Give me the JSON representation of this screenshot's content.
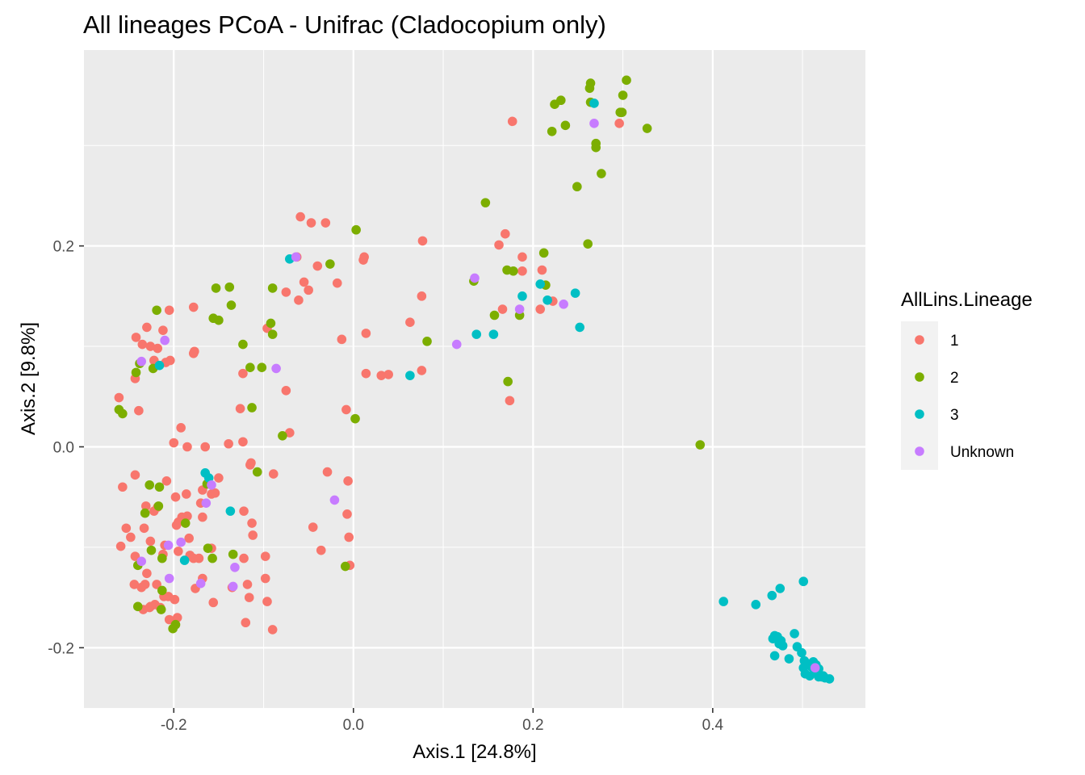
{
  "chart_data": {
    "type": "scatter",
    "title": "All lineages PCoA - Unifrac (Cladocopium only)",
    "xlabel": "Axis.1   [24.8%]",
    "ylabel": "Axis.2   [9.8%]",
    "xlim": [
      -0.3,
      0.57
    ],
    "ylim": [
      -0.26,
      0.395
    ],
    "x_ticks": [
      -0.2,
      0.0,
      0.2,
      0.4
    ],
    "x_tick_labels": [
      "-0.2",
      "0.0",
      "0.2",
      "0.4"
    ],
    "y_ticks": [
      -0.2,
      0.0,
      0.2
    ],
    "y_tick_labels": [
      "-0.2",
      "0.0",
      "0.2"
    ],
    "grid": true,
    "legend": {
      "title": "AllLins.Lineage",
      "placement": "right",
      "items": [
        "1",
        "2",
        "3",
        "Unknown"
      ]
    },
    "series": [
      {
        "name": "1",
        "color": "#F8766D",
        "points": [
          [
            0.177,
            0.324
          ],
          [
            0.296,
            0.322
          ],
          [
            -0.059,
            0.229
          ],
          [
            -0.047,
            0.223
          ],
          [
            -0.031,
            0.223
          ],
          [
            0.077,
            0.205
          ],
          [
            0.169,
            0.212
          ],
          [
            0.162,
            0.201
          ],
          [
            0.188,
            0.189
          ],
          [
            0.21,
            0.176
          ],
          [
            0.188,
            0.175
          ],
          [
            -0.063,
            0.189
          ],
          [
            -0.04,
            0.18
          ],
          [
            -0.055,
            0.164
          ],
          [
            -0.05,
            0.156
          ],
          [
            -0.018,
            0.163
          ],
          [
            0.012,
            0.189
          ],
          [
            0.011,
            0.186
          ],
          [
            -0.075,
            0.154
          ],
          [
            -0.061,
            0.146
          ],
          [
            0.076,
            0.15
          ],
          [
            0.222,
            0.145
          ],
          [
            0.166,
            0.137
          ],
          [
            0.208,
            0.137
          ],
          [
            0.063,
            0.124
          ],
          [
            -0.205,
            0.136
          ],
          [
            -0.178,
            0.139
          ],
          [
            -0.096,
            0.118
          ],
          [
            0.014,
            0.113
          ],
          [
            -0.013,
            0.107
          ],
          [
            -0.242,
            0.109
          ],
          [
            -0.23,
            0.119
          ],
          [
            -0.212,
            0.116
          ],
          [
            -0.235,
            0.102
          ],
          [
            -0.226,
            0.1
          ],
          [
            -0.218,
            0.098
          ],
          [
            -0.177,
            0.095
          ],
          [
            -0.178,
            0.093
          ],
          [
            -0.222,
            0.086
          ],
          [
            -0.204,
            0.086
          ],
          [
            -0.209,
            0.084
          ],
          [
            0.076,
            0.076
          ],
          [
            0.014,
            0.073
          ],
          [
            0.031,
            0.071
          ],
          [
            0.039,
            0.072
          ],
          [
            -0.123,
            0.073
          ],
          [
            -0.075,
            0.056
          ],
          [
            -0.243,
            0.068
          ],
          [
            -0.261,
            0.049
          ],
          [
            -0.239,
            0.036
          ],
          [
            -0.126,
            0.038
          ],
          [
            -0.008,
            0.037
          ],
          [
            -0.071,
            0.014
          ],
          [
            -0.192,
            0.019
          ],
          [
            -0.2,
            0.004
          ],
          [
            -0.185,
            0.0
          ],
          [
            -0.165,
            0.0
          ],
          [
            -0.139,
            0.003
          ],
          [
            -0.123,
            0.005
          ],
          [
            0.174,
            0.046
          ],
          [
            -0.257,
            -0.04
          ],
          [
            -0.243,
            -0.028
          ],
          [
            -0.208,
            -0.034
          ],
          [
            -0.198,
            -0.05
          ],
          [
            -0.186,
            -0.047
          ],
          [
            -0.168,
            -0.043
          ],
          [
            -0.15,
            -0.031
          ],
          [
            -0.158,
            -0.047
          ],
          [
            -0.154,
            -0.046
          ],
          [
            -0.17,
            -0.056
          ],
          [
            -0.115,
            -0.018
          ],
          [
            -0.114,
            -0.016
          ],
          [
            -0.089,
            -0.027
          ],
          [
            -0.029,
            -0.025
          ],
          [
            -0.006,
            -0.034
          ],
          [
            -0.231,
            -0.059
          ],
          [
            -0.218,
            -0.06
          ],
          [
            -0.222,
            -0.064
          ],
          [
            -0.191,
            -0.07
          ],
          [
            -0.185,
            -0.069
          ],
          [
            -0.195,
            -0.075
          ],
          [
            -0.197,
            -0.078
          ],
          [
            -0.183,
            -0.091
          ],
          [
            -0.168,
            -0.07
          ],
          [
            -0.122,
            -0.064
          ],
          [
            -0.113,
            -0.076
          ],
          [
            -0.112,
            -0.088
          ],
          [
            -0.045,
            -0.08
          ],
          [
            -0.007,
            -0.067
          ],
          [
            -0.005,
            -0.09
          ],
          [
            -0.036,
            -0.103
          ],
          [
            -0.004,
            -0.118
          ],
          [
            -0.253,
            -0.081
          ],
          [
            -0.248,
            -0.09
          ],
          [
            -0.233,
            -0.081
          ],
          [
            -0.259,
            -0.099
          ],
          [
            -0.226,
            -0.094
          ],
          [
            -0.21,
            -0.098
          ],
          [
            -0.243,
            -0.109
          ],
          [
            -0.212,
            -0.107
          ],
          [
            -0.195,
            -0.104
          ],
          [
            -0.182,
            -0.108
          ],
          [
            -0.178,
            -0.111
          ],
          [
            -0.172,
            -0.111
          ],
          [
            -0.158,
            -0.101
          ],
          [
            -0.122,
            -0.111
          ],
          [
            -0.098,
            -0.109
          ],
          [
            -0.118,
            -0.137
          ],
          [
            -0.098,
            -0.131
          ],
          [
            -0.23,
            -0.126
          ],
          [
            -0.232,
            -0.137
          ],
          [
            -0.244,
            -0.137
          ],
          [
            -0.236,
            -0.14
          ],
          [
            -0.219,
            -0.137
          ],
          [
            -0.211,
            -0.149
          ],
          [
            -0.206,
            -0.149
          ],
          [
            -0.199,
            -0.152
          ],
          [
            -0.176,
            -0.141
          ],
          [
            -0.168,
            -0.131
          ],
          [
            -0.135,
            -0.14
          ],
          [
            -0.156,
            -0.155
          ],
          [
            -0.116,
            -0.15
          ],
          [
            -0.096,
            -0.154
          ],
          [
            -0.234,
            -0.162
          ],
          [
            -0.227,
            -0.16
          ],
          [
            -0.221,
            -0.157
          ],
          [
            -0.226,
            -0.159
          ],
          [
            -0.215,
            -0.16
          ],
          [
            -0.205,
            -0.172
          ],
          [
            -0.196,
            -0.17
          ],
          [
            -0.12,
            -0.175
          ],
          [
            -0.09,
            -0.182
          ]
        ]
      },
      {
        "name": "2",
        "color": "#7CAE00",
        "points": [
          [
            0.264,
            0.362
          ],
          [
            0.304,
            0.365
          ],
          [
            0.263,
            0.357
          ],
          [
            0.3,
            0.35
          ],
          [
            0.231,
            0.345
          ],
          [
            0.224,
            0.341
          ],
          [
            0.264,
            0.343
          ],
          [
            0.297,
            0.333
          ],
          [
            0.299,
            0.333
          ],
          [
            0.236,
            0.32
          ],
          [
            0.221,
            0.314
          ],
          [
            0.327,
            0.317
          ],
          [
            0.27,
            0.302
          ],
          [
            0.27,
            0.298
          ],
          [
            0.276,
            0.272
          ],
          [
            0.249,
            0.259
          ],
          [
            0.147,
            0.243
          ],
          [
            0.003,
            0.216
          ],
          [
            0.261,
            0.202
          ],
          [
            0.212,
            0.193
          ],
          [
            -0.026,
            0.182
          ],
          [
            0.171,
            0.176
          ],
          [
            0.178,
            0.175
          ],
          [
            0.134,
            0.165
          ],
          [
            0.214,
            0.161
          ],
          [
            -0.153,
            0.158
          ],
          [
            -0.138,
            0.159
          ],
          [
            -0.09,
            0.158
          ],
          [
            0.157,
            0.131
          ],
          [
            0.185,
            0.131
          ],
          [
            -0.219,
            0.136
          ],
          [
            -0.156,
            0.128
          ],
          [
            -0.15,
            0.126
          ],
          [
            -0.136,
            0.141
          ],
          [
            -0.092,
            0.123
          ],
          [
            0.082,
            0.105
          ],
          [
            -0.09,
            0.112
          ],
          [
            -0.123,
            0.102
          ],
          [
            0.172,
            0.065
          ],
          [
            -0.238,
            0.083
          ],
          [
            -0.223,
            0.078
          ],
          [
            -0.242,
            0.074
          ],
          [
            -0.115,
            0.079
          ],
          [
            -0.102,
            0.079
          ],
          [
            -0.261,
            0.037
          ],
          [
            -0.257,
            0.033
          ],
          [
            -0.113,
            0.039
          ],
          [
            0.002,
            0.028
          ],
          [
            -0.079,
            0.011
          ],
          [
            0.386,
            0.002
          ],
          [
            -0.227,
            -0.038
          ],
          [
            -0.216,
            -0.04
          ],
          [
            -0.163,
            -0.037
          ],
          [
            -0.107,
            -0.025
          ],
          [
            -0.232,
            -0.066
          ],
          [
            -0.217,
            -0.059
          ],
          [
            -0.187,
            -0.076
          ],
          [
            -0.24,
            -0.118
          ],
          [
            -0.225,
            -0.103
          ],
          [
            -0.213,
            -0.111
          ],
          [
            -0.162,
            -0.101
          ],
          [
            -0.157,
            -0.111
          ],
          [
            -0.134,
            -0.107
          ],
          [
            -0.009,
            -0.119
          ],
          [
            -0.213,
            -0.143
          ],
          [
            -0.24,
            -0.159
          ],
          [
            -0.214,
            -0.162
          ],
          [
            -0.198,
            -0.177
          ],
          [
            -0.201,
            -0.181
          ]
        ]
      },
      {
        "name": "3",
        "color": "#00BFC4",
        "points": [
          [
            0.268,
            0.342
          ],
          [
            -0.071,
            0.187
          ],
          [
            0.208,
            0.162
          ],
          [
            0.247,
            0.153
          ],
          [
            0.188,
            0.15
          ],
          [
            0.216,
            0.146
          ],
          [
            0.252,
            0.119
          ],
          [
            0.137,
            0.112
          ],
          [
            0.156,
            0.112
          ],
          [
            0.063,
            0.071
          ],
          [
            -0.216,
            0.081
          ],
          [
            -0.165,
            -0.026
          ],
          [
            -0.161,
            -0.031
          ],
          [
            -0.137,
            -0.064
          ],
          [
            -0.188,
            -0.113
          ],
          [
            0.412,
            -0.154
          ],
          [
            0.448,
            -0.157
          ],
          [
            0.466,
            -0.148
          ],
          [
            0.475,
            -0.141
          ],
          [
            0.501,
            -0.134
          ],
          [
            0.469,
            -0.188
          ],
          [
            0.472,
            -0.189
          ],
          [
            0.476,
            -0.193
          ],
          [
            0.491,
            -0.186
          ],
          [
            0.467,
            -0.191
          ],
          [
            0.474,
            -0.196
          ],
          [
            0.478,
            -0.198
          ],
          [
            0.494,
            -0.199
          ],
          [
            0.469,
            -0.208
          ],
          [
            0.485,
            -0.211
          ],
          [
            0.499,
            -0.205
          ],
          [
            0.502,
            -0.213
          ],
          [
            0.506,
            -0.216
          ],
          [
            0.512,
            -0.214
          ],
          [
            0.515,
            -0.217
          ],
          [
            0.501,
            -0.22
          ],
          [
            0.51,
            -0.219
          ],
          [
            0.518,
            -0.221
          ],
          [
            0.503,
            -0.226
          ],
          [
            0.508,
            -0.228
          ],
          [
            0.513,
            -0.225
          ],
          [
            0.518,
            -0.229
          ],
          [
            0.521,
            -0.229
          ],
          [
            0.525,
            -0.23
          ],
          [
            0.53,
            -0.231
          ],
          [
            0.516,
            -0.223
          ],
          [
            0.523,
            -0.228
          ]
        ]
      },
      {
        "name": "Unknown",
        "color": "#C77CFF",
        "points": [
          [
            0.268,
            0.322
          ],
          [
            -0.064,
            0.189
          ],
          [
            0.135,
            0.168
          ],
          [
            0.185,
            0.137
          ],
          [
            0.234,
            0.142
          ],
          [
            0.115,
            0.102
          ],
          [
            -0.21,
            0.106
          ],
          [
            -0.236,
            0.085
          ],
          [
            -0.086,
            0.078
          ],
          [
            -0.164,
            -0.056
          ],
          [
            -0.158,
            -0.038
          ],
          [
            -0.021,
            -0.053
          ],
          [
            -0.206,
            -0.098
          ],
          [
            -0.192,
            -0.095
          ],
          [
            -0.236,
            -0.114
          ],
          [
            -0.132,
            -0.12
          ],
          [
            -0.205,
            -0.131
          ],
          [
            -0.17,
            -0.136
          ],
          [
            -0.134,
            -0.139
          ],
          [
            0.514,
            -0.22
          ]
        ]
      }
    ]
  }
}
